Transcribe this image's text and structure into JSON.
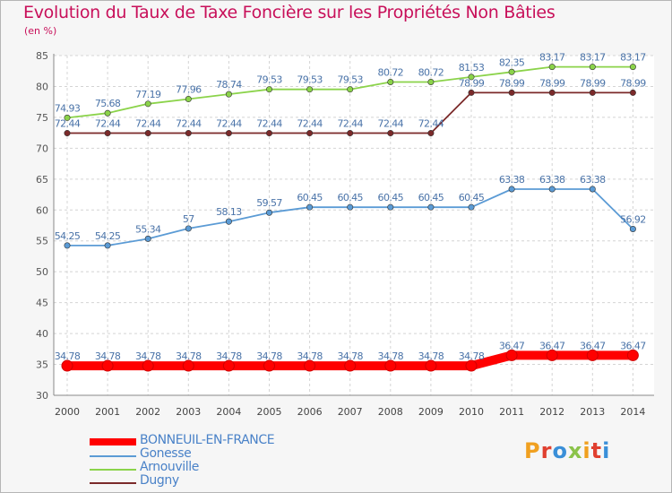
{
  "chart_data": {
    "type": "line",
    "title": "Evolution du Taux de Taxe Foncière sur les Propriétés Non Bâties",
    "ylabel": "(en %)",
    "xlabel": "",
    "ylim": [
      30,
      85
    ],
    "yticks": [
      30,
      35,
      40,
      45,
      50,
      55,
      60,
      65,
      70,
      75,
      80,
      85
    ],
    "categories": [
      "2000",
      "2001",
      "2002",
      "2003",
      "2004",
      "2005",
      "2006",
      "2007",
      "2008",
      "2009",
      "2010",
      "2011",
      "2012",
      "2013",
      "2014"
    ],
    "grid": true,
    "legend": "bottom-left",
    "series": [
      {
        "name": "BONNEUIL-EN-FRANCE",
        "color": "#ff0000",
        "values": [
          34.78,
          34.78,
          34.78,
          34.78,
          34.78,
          34.78,
          34.78,
          34.78,
          34.78,
          34.78,
          34.78,
          36.47,
          36.47,
          36.47,
          36.47
        ],
        "labels": [
          "34.78",
          "34.78",
          "34.78",
          "34.78",
          "34.78",
          "34.78",
          "34.78",
          "34.78",
          "34.78",
          "34.78",
          "34.78",
          "36.47",
          "36.47",
          "36.47",
          "36.47"
        ]
      },
      {
        "name": "Gonesse",
        "color": "#5b9bd5",
        "values": [
          54.25,
          54.25,
          55.34,
          57,
          58.13,
          59.57,
          60.45,
          60.45,
          60.45,
          60.45,
          60.45,
          63.38,
          63.38,
          63.38,
          56.92
        ],
        "labels": [
          "54.25",
          "54.25",
          "55.34",
          "57",
          "58.13",
          "59.57",
          "60.45",
          "60.45",
          "60.45",
          "60.45",
          "60.45",
          "63.38",
          "63.38",
          "63.38",
          "56.92"
        ]
      },
      {
        "name": "Arnouville",
        "color": "#8bd34a",
        "values": [
          74.93,
          75.68,
          77.19,
          77.96,
          78.74,
          79.53,
          79.53,
          79.53,
          80.72,
          80.72,
          81.53,
          82.35,
          83.17,
          83.17,
          83.17
        ],
        "labels": [
          "74.93",
          "75.68",
          "77.19",
          "77.96",
          "78.74",
          "79.53",
          "79.53",
          "79.53",
          "80.72",
          "80.72",
          "81.53",
          "82.35",
          "83.17",
          "83.17",
          "83.17"
        ]
      },
      {
        "name": "Dugny",
        "color": "#7b2a2a",
        "values": [
          72.44,
          72.44,
          72.44,
          72.44,
          72.44,
          72.44,
          72.44,
          72.44,
          72.44,
          72.44,
          78.99,
          78.99,
          78.99,
          78.99,
          78.99
        ],
        "labels": [
          "72.44",
          "72.44",
          "72.44",
          "72.44",
          "72.44",
          "72.44",
          "72.44",
          "72.44",
          "72.44",
          "72.44",
          "78.99",
          "78.99",
          "78.99",
          "78.99",
          "78.99"
        ]
      }
    ]
  },
  "legend": {
    "items": [
      "BONNEUIL-EN-FRANCE",
      "Gonesse",
      "Arnouville",
      "Dugny"
    ]
  },
  "logo": {
    "text": "Proxiti",
    "colors": [
      "#f0a020",
      "#e04030",
      "#3a8fd8",
      "#8bc34a",
      "#f0a020",
      "#e04030",
      "#3a8fd8"
    ]
  }
}
